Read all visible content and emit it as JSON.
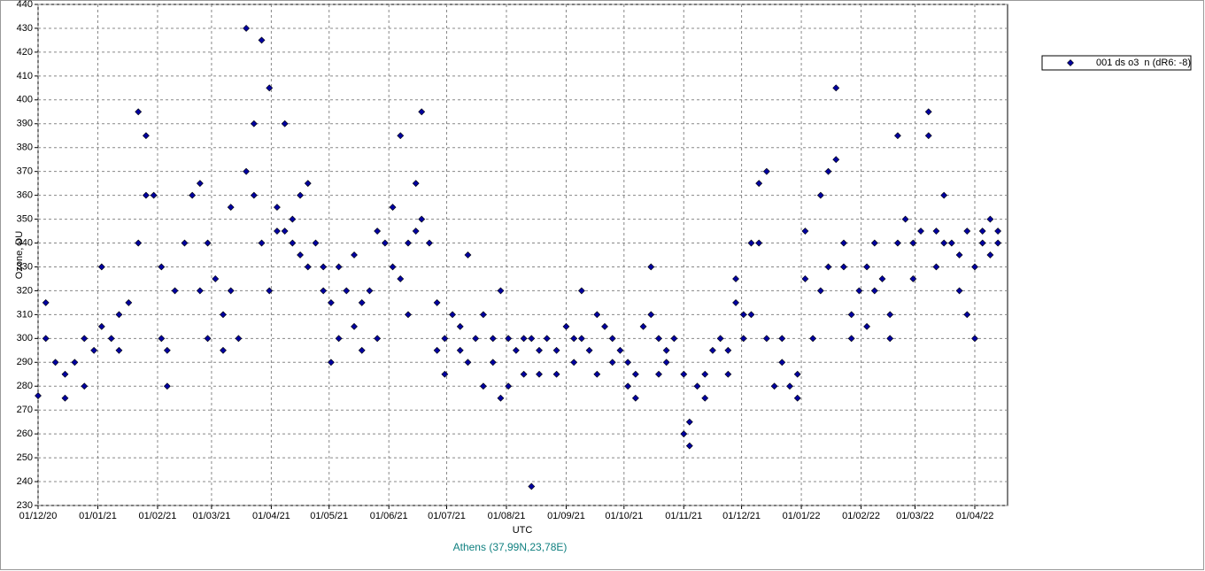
{
  "chart_data": {
    "type": "scatter",
    "title": "Athens (37,99N,23,78E)",
    "x_label": "UTC",
    "y_label": "Ozone, DU",
    "grid": true,
    "legend": "top-right",
    "ylim": [
      230,
      440
    ],
    "yticks": [
      230,
      240,
      250,
      260,
      270,
      280,
      290,
      300,
      310,
      320,
      330,
      340,
      350,
      360,
      370,
      380,
      390,
      400,
      410,
      420,
      430,
      440
    ],
    "xlim": [
      "2020-12-01",
      "2022-04-18"
    ],
    "xticks": [
      {
        "value": "2020-12-01",
        "label": "01/12/20"
      },
      {
        "value": "2021-01-01",
        "label": "01/01/21"
      },
      {
        "value": "2021-02-01",
        "label": "01/02/21"
      },
      {
        "value": "2021-03-01",
        "label": "01/03/21"
      },
      {
        "value": "2021-04-01",
        "label": "01/04/21"
      },
      {
        "value": "2021-05-01",
        "label": "01/05/21"
      },
      {
        "value": "2021-06-01",
        "label": "01/06/21"
      },
      {
        "value": "2021-07-01",
        "label": "01/07/21"
      },
      {
        "value": "2021-08-01",
        "label": "01/08/21"
      },
      {
        "value": "2021-09-01",
        "label": "01/09/21"
      },
      {
        "value": "2021-10-01",
        "label": "01/10/21"
      },
      {
        "value": "2021-11-01",
        "label": "01/11/21"
      },
      {
        "value": "2021-12-01",
        "label": "01/12/21"
      },
      {
        "value": "2022-01-01",
        "label": "01/01/22"
      },
      {
        "value": "2022-02-01",
        "label": "01/02/22"
      },
      {
        "value": "2022-03-01",
        "label": "01/03/22"
      },
      {
        "value": "2022-04-01",
        "label": "01/04/22"
      }
    ],
    "series": [
      {
        "name": "001 ds o3  n (dR6: -8)",
        "color": "#0000a0",
        "x": [
          "2020-12-01",
          "2020-12-05",
          "2020-12-05",
          "2020-12-10",
          "2020-12-15",
          "2020-12-15",
          "2020-12-20",
          "2020-12-25",
          "2020-12-25",
          "2020-12-30",
          "2021-01-03",
          "2021-01-03",
          "2021-01-08",
          "2021-01-12",
          "2021-01-12",
          "2021-01-17",
          "2021-01-22",
          "2021-01-22",
          "2021-01-26",
          "2021-01-26",
          "2021-01-30",
          "2021-02-03",
          "2021-02-03",
          "2021-02-06",
          "2021-02-06",
          "2021-02-10",
          "2021-02-15",
          "2021-02-19",
          "2021-02-23",
          "2021-02-23",
          "2021-02-27",
          "2021-02-27",
          "2021-03-03",
          "2021-03-07",
          "2021-03-07",
          "2021-03-11",
          "2021-03-11",
          "2021-03-15",
          "2021-03-19",
          "2021-03-19",
          "2021-03-23",
          "2021-03-23",
          "2021-03-27",
          "2021-03-27",
          "2021-03-31",
          "2021-03-31",
          "2021-04-04",
          "2021-04-04",
          "2021-04-08",
          "2021-04-08",
          "2021-04-12",
          "2021-04-12",
          "2021-04-16",
          "2021-04-16",
          "2021-04-20",
          "2021-04-20",
          "2021-04-24",
          "2021-04-28",
          "2021-04-28",
          "2021-05-02",
          "2021-05-02",
          "2021-05-06",
          "2021-05-06",
          "2021-05-10",
          "2021-05-14",
          "2021-05-14",
          "2021-05-18",
          "2021-05-18",
          "2021-05-22",
          "2021-05-26",
          "2021-05-26",
          "2021-05-30",
          "2021-06-03",
          "2021-06-03",
          "2021-06-07",
          "2021-06-07",
          "2021-06-11",
          "2021-06-11",
          "2021-06-15",
          "2021-06-15",
          "2021-06-18",
          "2021-06-18",
          "2021-06-22",
          "2021-06-26",
          "2021-06-26",
          "2021-06-30",
          "2021-06-30",
          "2021-07-04",
          "2021-07-08",
          "2021-07-08",
          "2021-07-12",
          "2021-07-12",
          "2021-07-16",
          "2021-07-20",
          "2021-07-20",
          "2021-07-25",
          "2021-07-25",
          "2021-07-29",
          "2021-07-29",
          "2021-08-02",
          "2021-08-02",
          "2021-08-06",
          "2021-08-10",
          "2021-08-10",
          "2021-08-14",
          "2021-08-14",
          "2021-08-18",
          "2021-08-18",
          "2021-08-22",
          "2021-08-27",
          "2021-08-27",
          "2021-09-01",
          "2021-09-05",
          "2021-09-05",
          "2021-09-09",
          "2021-09-09",
          "2021-09-13",
          "2021-09-17",
          "2021-09-17",
          "2021-09-21",
          "2021-09-25",
          "2021-09-25",
          "2021-09-29",
          "2021-10-03",
          "2021-10-03",
          "2021-10-07",
          "2021-10-07",
          "2021-10-11",
          "2021-10-15",
          "2021-10-15",
          "2021-10-19",
          "2021-10-19",
          "2021-10-23",
          "2021-10-23",
          "2021-10-27",
          "2021-11-01",
          "2021-11-01",
          "2021-11-04",
          "2021-11-04",
          "2021-11-08",
          "2021-11-12",
          "2021-11-12",
          "2021-11-16",
          "2021-11-20",
          "2021-11-24",
          "2021-11-24",
          "2021-11-28",
          "2021-11-28",
          "2021-12-02",
          "2021-12-02",
          "2021-12-06",
          "2021-12-06",
          "2021-12-10",
          "2021-12-10",
          "2021-12-14",
          "2021-12-14",
          "2021-12-18",
          "2021-12-22",
          "2021-12-22",
          "2021-12-26",
          "2021-12-30",
          "2021-12-30",
          "2022-01-03",
          "2022-01-03",
          "2022-01-07",
          "2022-01-11",
          "2022-01-11",
          "2022-01-15",
          "2022-01-15",
          "2022-01-19",
          "2022-01-19",
          "2022-01-23",
          "2022-01-23",
          "2022-01-27",
          "2022-01-27",
          "2022-01-31",
          "2022-02-04",
          "2022-02-04",
          "2022-02-08",
          "2022-02-08",
          "2022-02-12",
          "2022-02-16",
          "2022-02-16",
          "2022-02-20",
          "2022-02-20",
          "2022-02-24",
          "2022-02-28",
          "2022-02-28",
          "2022-03-04",
          "2022-03-08",
          "2022-03-08",
          "2022-03-12",
          "2022-03-12",
          "2022-03-16",
          "2022-03-16",
          "2022-03-20",
          "2022-03-24",
          "2022-03-24",
          "2022-03-28",
          "2022-03-28",
          "2022-04-01",
          "2022-04-01",
          "2022-04-05",
          "2022-04-05",
          "2022-04-09",
          "2022-04-09",
          "2022-04-13",
          "2022-04-13"
        ],
        "values": [
          276,
          300,
          315,
          290,
          275,
          285,
          290,
          280,
          300,
          295,
          330,
          305,
          300,
          310,
          295,
          315,
          395,
          340,
          360,
          385,
          360,
          330,
          300,
          280,
          295,
          320,
          340,
          360,
          365,
          320,
          340,
          300,
          325,
          295,
          310,
          355,
          320,
          300,
          430,
          370,
          390,
          360,
          425,
          340,
          405,
          320,
          355,
          345,
          390,
          345,
          350,
          340,
          360,
          335,
          365,
          330,
          340,
          330,
          320,
          315,
          290,
          330,
          300,
          320,
          335,
          305,
          315,
          295,
          320,
          345,
          300,
          340,
          355,
          330,
          385,
          325,
          340,
          310,
          365,
          345,
          395,
          350,
          340,
          315,
          295,
          300,
          285,
          310,
          305,
          295,
          335,
          290,
          300,
          310,
          280,
          300,
          290,
          320,
          275,
          300,
          280,
          295,
          300,
          285,
          300,
          238,
          295,
          285,
          300,
          295,
          285,
          305,
          300,
          290,
          320,
          300,
          295,
          310,
          285,
          305,
          300,
          290,
          295,
          290,
          280,
          285,
          275,
          305,
          330,
          310,
          300,
          285,
          295,
          290,
          300,
          285,
          260,
          265,
          255,
          280,
          285,
          275,
          295,
          300,
          295,
          285,
          325,
          315,
          310,
          300,
          340,
          310,
          365,
          340,
          370,
          300,
          280,
          300,
          290,
          280,
          275,
          285,
          325,
          345,
          300,
          360,
          320,
          370,
          330,
          405,
          375,
          340,
          330,
          310,
          300,
          320,
          330,
          305,
          340,
          320,
          325,
          300,
          310,
          340,
          385,
          350,
          340,
          325,
          345,
          385,
          395,
          345,
          330,
          360,
          340,
          340,
          335,
          320,
          345,
          310,
          330,
          300,
          340,
          345,
          350,
          335,
          340,
          345
        ]
      }
    ]
  }
}
